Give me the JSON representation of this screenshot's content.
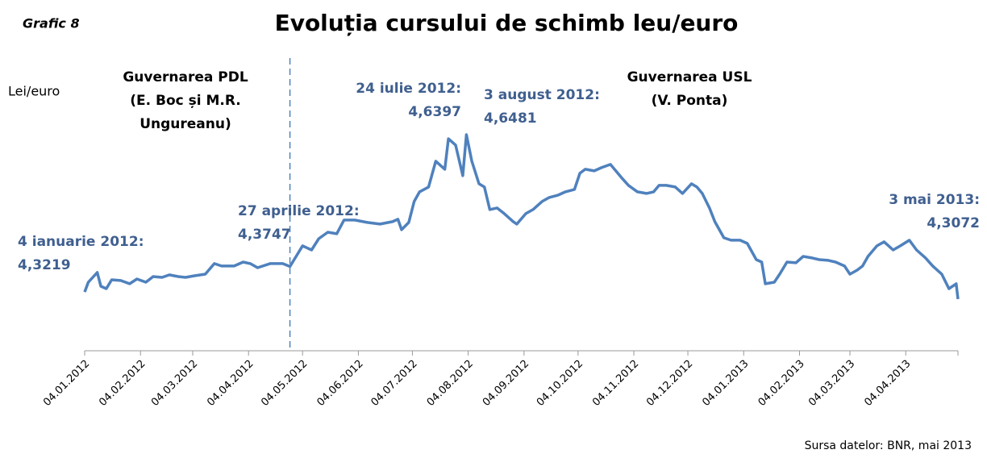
{
  "chart_data": {
    "type": "line",
    "figure_label": "Grafic 8",
    "title": "Evoluția cursului de schimb leu/euro",
    "y_label": "Lei/euro",
    "source": "Sursa datelor: BNR, mai 2013",
    "groups": [
      {
        "lines": [
          "Guvernarea PDL",
          "(E. Boc și M.R.",
          "Ungureanu)"
        ]
      },
      {
        "lines": [
          "Guvernarea USL",
          "(V. Ponta)"
        ]
      }
    ],
    "divider_x": "27.04.2012",
    "annotations": [
      {
        "x": "04.01.2012",
        "text": "4 ianuarie 2012:",
        "value": 4.3219,
        "value_label": "4,3219"
      },
      {
        "x": "27.04.2012",
        "text": "27 aprilie 2012:",
        "value": 4.3747,
        "value_label": "4,3747"
      },
      {
        "x": "24.07.2012",
        "text": "24 iulie 2012:",
        "value": 4.6397,
        "value_label": "4,6397"
      },
      {
        "x": "03.08.2012",
        "text": "3 august 2012:",
        "value": 4.6481,
        "value_label": "4,6481"
      },
      {
        "x": "03.05.2013",
        "text": "3 mai 2013:",
        "value": 4.3072,
        "value_label": "4,3072"
      }
    ],
    "xlim": [
      "04.01.2012",
      "03.05.2013"
    ],
    "xticks": [
      "04.01.2012",
      "04.02.2012",
      "04.03.2012",
      "04.04.2012",
      "04.05.2012",
      "04.06.2012",
      "04.07.2012",
      "04.08.2012",
      "04.09.2012",
      "04.10.2012",
      "04.11.2012",
      "04.12.2012",
      "04.01.2013",
      "04.02.2013",
      "04.03.2013",
      "04.04.2013"
    ],
    "ylim": [
      4.2,
      4.7
    ],
    "x": [
      "04.01.2012",
      "06.01.2012",
      "11.01.2012",
      "13.01.2012",
      "16.01.2012",
      "19.01.2012",
      "24.01.2012",
      "29.01.2012",
      "02.02.2012",
      "07.02.2012",
      "11.02.2012",
      "16.02.2012",
      "20.02.2012",
      "25.02.2012",
      "29.02.2012",
      "05.03.2012",
      "11.03.2012",
      "16.03.2012",
      "20.03.2012",
      "27.03.2012",
      "01.04.2012",
      "05.04.2012",
      "09.04.2012",
      "16.04.2012",
      "23.04.2012",
      "27.04.2012",
      "04.05.2012",
      "09.05.2012",
      "13.05.2012",
      "18.05.2012",
      "23.05.2012",
      "27.05.2012",
      "02.06.2012",
      "09.06.2012",
      "16.06.2012",
      "23.06.2012",
      "26.06.2012",
      "28.06.2012",
      "02.07.2012",
      "05.07.2012",
      "08.07.2012",
      "13.07.2012",
      "17.07.2012",
      "22.07.2012",
      "24.07.2012",
      "28.07.2012",
      "01.08.2012",
      "03.08.2012",
      "06.08.2012",
      "10.08.2012",
      "13.08.2012",
      "16.08.2012",
      "20.08.2012",
      "24.08.2012",
      "29.08.2012",
      "31.08.2012",
      "05.09.2012",
      "09.09.2012",
      "14.09.2012",
      "18.09.2012",
      "23.09.2012",
      "27.09.2012",
      "02.10.2012",
      "05.10.2012",
      "08.10.2012",
      "13.10.2012",
      "17.10.2012",
      "22.10.2012",
      "25.10.2012",
      "28.10.2012",
      "01.11.2012",
      "06.11.2012",
      "11.11.2012",
      "15.11.2012",
      "18.11.2012",
      "22.11.2012",
      "27.11.2012",
      "01.12.2012",
      "06.12.2012",
      "09.12.2012",
      "12.12.2012",
      "16.12.2012",
      "19.12.2012",
      "24.12.2012",
      "28.12.2012",
      "02.01.2013",
      "06.01.2013",
      "11.01.2013",
      "14.01.2013",
      "16.01.2013",
      "21.01.2013",
      "24.01.2013",
      "28.01.2013",
      "02.02.2013",
      "06.02.2013",
      "11.02.2013",
      "15.02.2013",
      "20.02.2013",
      "24.02.2013",
      "01.03.2013",
      "04.03.2013",
      "08.03.2013",
      "11.03.2013",
      "14.03.2013",
      "19.03.2013",
      "23.03.2013",
      "28.03.2013",
      "01.04.2013",
      "06.04.2013",
      "10.04.2013",
      "15.04.2013",
      "19.04.2013",
      "24.04.2013",
      "28.04.2013",
      "02.05.2013",
      "03.05.2013"
    ],
    "series": [
      {
        "name": "Lei/euro",
        "color": "#4f81bd",
        "values": [
          4.3219,
          4.3422,
          4.3623,
          4.3338,
          4.3288,
          4.3472,
          4.3456,
          4.3389,
          4.3489,
          4.3422,
          4.3539,
          4.3522,
          4.3573,
          4.3539,
          4.3522,
          4.3556,
          4.3589,
          4.3807,
          4.3757,
          4.3757,
          4.384,
          4.3807,
          4.3723,
          4.3807,
          4.3807,
          4.3747,
          4.4175,
          4.4091,
          4.4325,
          4.4459,
          4.4426,
          4.471,
          4.471,
          4.466,
          4.4627,
          4.4677,
          4.4727,
          4.451,
          4.466,
          4.5095,
          4.5296,
          4.5396,
          4.5932,
          4.5764,
          4.6397,
          4.6266,
          4.563,
          4.6481,
          4.5932,
          4.5463,
          4.5396,
          4.4928,
          4.4961,
          4.4844,
          4.4677,
          4.4627,
          4.4844,
          4.4928,
          4.5095,
          4.5179,
          4.5229,
          4.5296,
          4.5346,
          4.5681,
          4.5764,
          4.5731,
          4.5798,
          4.5865,
          4.5731,
          4.5597,
          4.543,
          4.5296,
          4.5262,
          4.5296,
          4.543,
          4.543,
          4.5396,
          4.5262,
          4.5463,
          4.5396,
          4.5262,
          4.4961,
          4.4677,
          4.4342,
          4.4292,
          4.4292,
          4.4225,
          4.389,
          4.384,
          4.3389,
          4.3422,
          4.3589,
          4.384,
          4.3824,
          4.3957,
          4.3924,
          4.389,
          4.3874,
          4.384,
          4.3757,
          4.3589,
          4.3673,
          4.3757,
          4.3957,
          4.4175,
          4.4259,
          4.4091,
          4.4175,
          4.4292,
          4.4091,
          4.3924,
          4.3757,
          4.3589,
          4.3288,
          4.3389,
          4.3072
        ]
      }
    ]
  }
}
